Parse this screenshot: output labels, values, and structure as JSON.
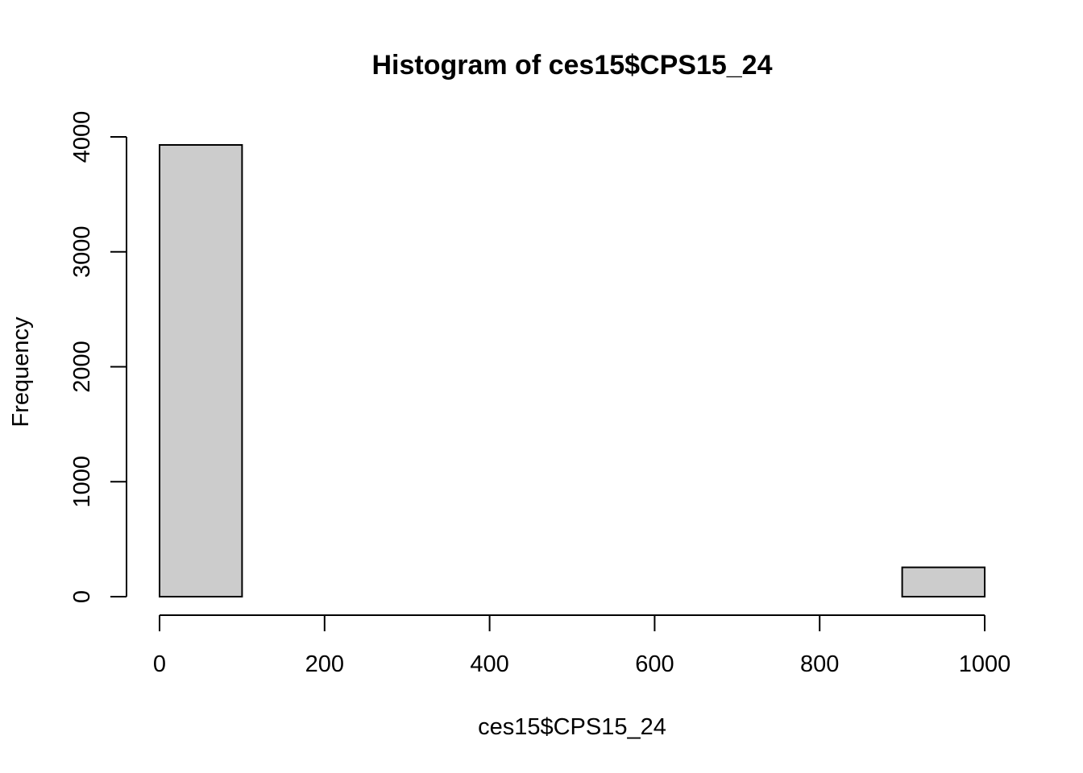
{
  "chart_data": {
    "type": "bar",
    "title": "Histogram of ces15$CPS15_24",
    "xlabel": "ces15$CPS15_24",
    "ylabel": "Frequency",
    "bins": [
      {
        "start": 0,
        "end": 100,
        "count": 3930
      },
      {
        "start": 100,
        "end": 200,
        "count": 0
      },
      {
        "start": 200,
        "end": 300,
        "count": 0
      },
      {
        "start": 300,
        "end": 400,
        "count": 0
      },
      {
        "start": 400,
        "end": 500,
        "count": 0
      },
      {
        "start": 500,
        "end": 600,
        "count": 0
      },
      {
        "start": 600,
        "end": 700,
        "count": 0
      },
      {
        "start": 700,
        "end": 800,
        "count": 0
      },
      {
        "start": 800,
        "end": 900,
        "count": 0
      },
      {
        "start": 900,
        "end": 1000,
        "count": 255
      }
    ],
    "x_ticks": [
      0,
      200,
      400,
      600,
      800,
      1000
    ],
    "y_ticks": [
      0,
      1000,
      2000,
      3000,
      4000
    ],
    "xlim": [
      0,
      1000
    ],
    "ylim": [
      0,
      4000
    ],
    "bar_color": "#cccccc",
    "grid": false,
    "legend": "none"
  }
}
